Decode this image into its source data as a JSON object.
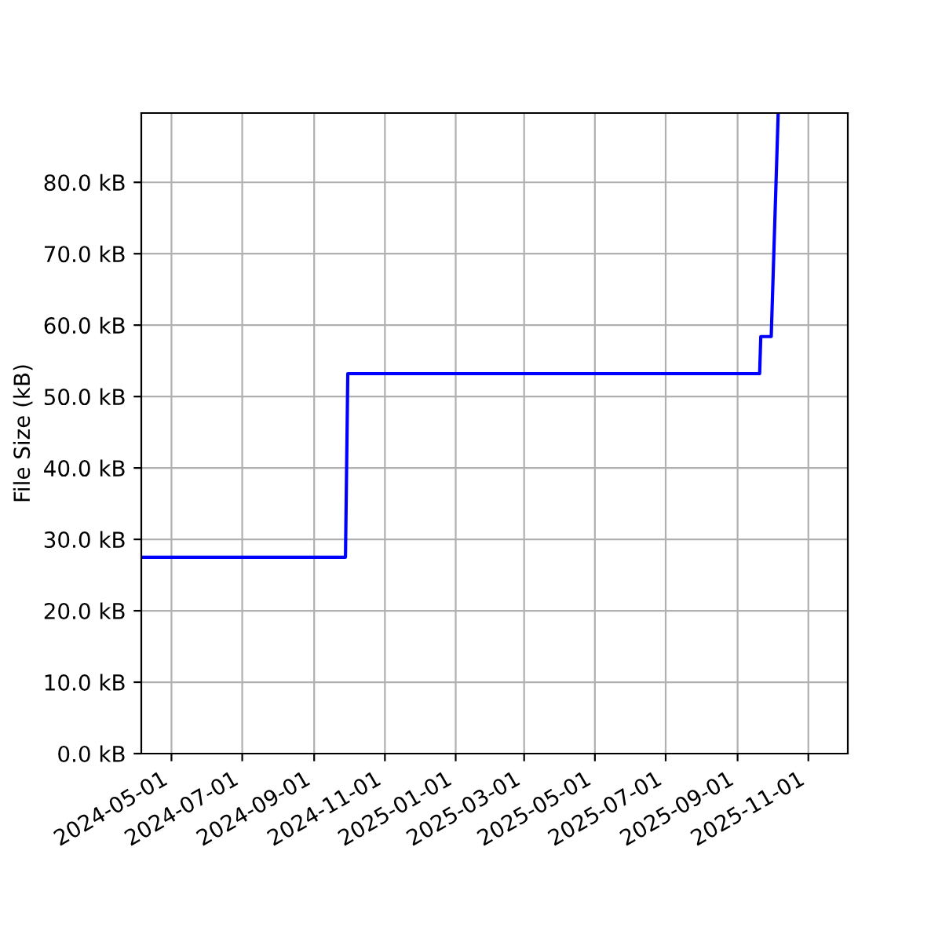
{
  "chart_data": {
    "type": "line",
    "ylabel": "File Size (kB)",
    "x": [
      "2024-04-05",
      "2024-09-28",
      "2024-09-30",
      "2025-09-20",
      "2025-09-21",
      "2025-09-30",
      "2025-10-06"
    ],
    "series": [
      {
        "color": "#0000ff",
        "values": [
          27.5,
          27.5,
          53.2,
          53.2,
          58.4,
          58.4,
          89.7
        ]
      }
    ],
    "xlim": [
      "2024-04-05",
      "2025-12-05"
    ],
    "xticks": [
      "2024-05-01",
      "2024-07-01",
      "2024-09-01",
      "2024-11-01",
      "2025-01-01",
      "2025-03-01",
      "2025-05-01",
      "2025-07-01",
      "2025-09-01",
      "2025-11-01"
    ],
    "ylim": [
      0,
      89.7
    ],
    "yticks": [
      {
        "value": 0,
        "label": "0.0 kB"
      },
      {
        "value": 10,
        "label": "10.0 kB"
      },
      {
        "value": 20,
        "label": "20.0 kB"
      },
      {
        "value": 30,
        "label": "30.0 kB"
      },
      {
        "value": 40,
        "label": "40.0 kB"
      },
      {
        "value": 50,
        "label": "50.0 kB"
      },
      {
        "value": 60,
        "label": "60.0 kB"
      },
      {
        "value": 70,
        "label": "70.0 kB"
      },
      {
        "value": 80,
        "label": "80.0 kB"
      }
    ],
    "grid": true
  }
}
